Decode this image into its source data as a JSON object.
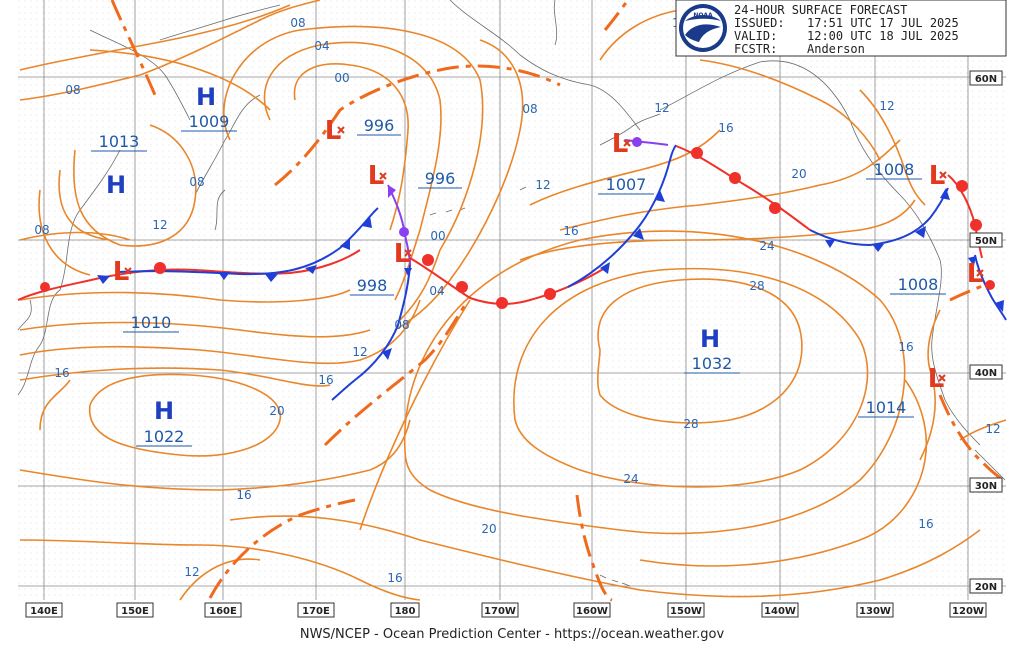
{
  "header": {
    "title": "24-HOUR SURFACE FORECAST",
    "issued_label": "ISSUED:",
    "issued_value": "17:51 UTC 17 JUL 2025",
    "valid_label": "VALID:",
    "valid_value": "12:00 UTC 18 JUL 2025",
    "fcstr_label": "FCSTR:",
    "fcstr_value": "Anderson",
    "logo_text": "NOAA"
  },
  "footer": {
    "credit": "NWS/NCEP - Ocean Prediction Center - https://ocean.weather.gov"
  },
  "axes": {
    "longitude_labels": [
      "140E",
      "150E",
      "160E",
      "170E",
      "180",
      "170W",
      "160W",
      "150W",
      "140W",
      "130W",
      "120W"
    ],
    "latitude_labels": [
      "60N",
      "50N",
      "40N",
      "30N",
      "20N"
    ]
  },
  "pressure_systems": {
    "highs": [
      {
        "symbol": "H",
        "value": "1009"
      },
      {
        "symbol": "H",
        "value": "1013"
      },
      {
        "symbol": "H",
        "value": "1022"
      },
      {
        "symbol": "H",
        "value": "1032"
      }
    ],
    "lows": [
      {
        "symbol": "L",
        "value": "996"
      },
      {
        "symbol": "L",
        "value": "996"
      },
      {
        "symbol": "L",
        "value": "998"
      },
      {
        "symbol": "L",
        "value": "1010"
      },
      {
        "symbol": "L",
        "value": "1007"
      },
      {
        "symbol": "L",
        "value": "1008"
      },
      {
        "symbol": "L",
        "value": "1008"
      },
      {
        "symbol": "L",
        "value": "1014"
      }
    ]
  },
  "isobar_labels": [
    "08",
    "04",
    "00",
    "08",
    "08",
    "12",
    "08",
    "00",
    "04",
    "08",
    "12",
    "16",
    "08",
    "12",
    "16",
    "20",
    "24",
    "28",
    "28",
    "24",
    "20",
    "16",
    "12",
    "16",
    "12",
    "16",
    "20",
    "16",
    "12",
    "16",
    "1"
  ],
  "colors": {
    "isobar": "#e9862a",
    "isobar_label": "#2a66b3",
    "pressure_value": "#1f5aa8",
    "high_symbol": "#1e3fbf",
    "low_symbol": "#e23a1f",
    "trough": "#f06a1d",
    "cold_front": "#1f3fd6",
    "warm_front": "#f0302a",
    "occluded_front": "#8a3ff0"
  },
  "icons": {
    "logo": "noaa-logo",
    "low_marker": "low-center-x-icon"
  }
}
